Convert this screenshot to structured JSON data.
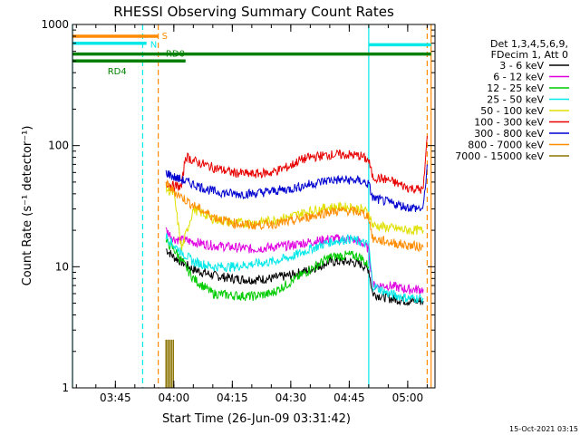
{
  "chart_data": {
    "type": "line",
    "title": "RHESSI Observing Summary Count Rates",
    "xlabel": "Start Time (26-Jun-09 03:31:42)",
    "ylabel": "Count Rate (s⁻¹ detector⁻¹)",
    "y_scale": "log",
    "ylim": [
      1,
      1000
    ],
    "xlim": [
      "03:34",
      "05:07"
    ],
    "x_ticks": [
      "03:45",
      "04:00",
      "04:15",
      "04:30",
      "04:45",
      "05:00"
    ],
    "y_ticks": [
      "1",
      "10",
      "100",
      "1000"
    ],
    "legend": {
      "placement": "top-right",
      "header": [
        "Det 1,3,4,5,6,9,",
        "FDecim 1, Att 0"
      ]
    },
    "series": [
      {
        "name": "3 - 6 keV",
        "color": "#000000",
        "x": [
          "03:58",
          "04:00",
          "04:05",
          "04:10",
          "04:15",
          "04:20",
          "04:25",
          "04:30",
          "04:35",
          "04:40",
          "04:45",
          "04:48",
          "04:50",
          "04:51",
          "04:55",
          "05:00",
          "05:04"
        ],
        "y": [
          14,
          12,
          9.5,
          8.5,
          8,
          7.8,
          8,
          8.5,
          9.5,
          11,
          11,
          10.5,
          9.5,
          6,
          5.5,
          5.2,
          5.2
        ]
      },
      {
        "name": "6 - 12 keV",
        "color": "#e000e0",
        "x": [
          "03:58",
          "04:00",
          "04:05",
          "04:10",
          "04:15",
          "04:20",
          "04:25",
          "04:30",
          "04:35",
          "04:40",
          "04:45",
          "04:48",
          "04:50",
          "04:51",
          "04:55",
          "05:00",
          "05:04"
        ],
        "y": [
          20,
          17,
          16,
          15,
          14.5,
          14,
          14.5,
          15,
          16,
          17,
          17,
          16,
          14,
          7,
          7,
          6.5,
          6.5
        ]
      },
      {
        "name": "12 - 25 keV",
        "color": "#00cc00",
        "x": [
          "03:58",
          "04:00",
          "04:05",
          "04:10",
          "04:15",
          "04:20",
          "04:25",
          "04:30",
          "04:35",
          "04:40",
          "04:45",
          "04:48",
          "04:50"
        ],
        "y": [
          16,
          14,
          8,
          6,
          5.8,
          5.7,
          6,
          7.5,
          9.5,
          12,
          12.5,
          12,
          10
        ]
      },
      {
        "name": "25 - 50 keV",
        "color": "#00e8e8",
        "x": [
          "03:58",
          "04:00",
          "04:05",
          "04:10",
          "04:15",
          "04:20",
          "04:25",
          "04:30",
          "04:35",
          "04:40",
          "04:45",
          "04:48",
          "04:50",
          "04:51",
          "04:55",
          "05:00",
          "05:04"
        ],
        "y": [
          18,
          15,
          11,
          10,
          10,
          10.5,
          11,
          12,
          14,
          16,
          17,
          16,
          15,
          7,
          6,
          5.5,
          5.5
        ]
      },
      {
        "name": "50 - 100 keV",
        "color": "#e0e000",
        "x": [
          "03:58",
          "04:00",
          "04:02",
          "04:05",
          "04:10",
          "04:15",
          "04:20",
          "04:25",
          "04:30",
          "04:35",
          "04:40",
          "04:45",
          "04:48",
          "04:50",
          "04:51",
          "04:55",
          "05:00",
          "05:04"
        ],
        "y": [
          44,
          40,
          14,
          30,
          25,
          23,
          23,
          24,
          26,
          29,
          31,
          31,
          30,
          28,
          22,
          21,
          20,
          20
        ]
      },
      {
        "name": "100 - 300 keV",
        "color": "#e80000",
        "x": [
          "03:58",
          "04:00",
          "04:02",
          "04:03",
          "04:05",
          "04:10",
          "04:15",
          "04:20",
          "04:25",
          "04:30",
          "04:32",
          "04:35",
          "04:40",
          "04:45",
          "04:48",
          "04:50",
          "04:51",
          "04:55",
          "05:00",
          "05:04",
          "05:05"
        ],
        "y": [
          50,
          46,
          46,
          82,
          75,
          66,
          60,
          58,
          60,
          68,
          75,
          80,
          84,
          84,
          82,
          75,
          55,
          52,
          45,
          43,
          120
        ]
      },
      {
        "name": "300 - 800 keV",
        "color": "#0000d0",
        "x": [
          "03:58",
          "04:00",
          "04:05",
          "04:10",
          "04:15",
          "04:20",
          "04:25",
          "04:30",
          "04:35",
          "04:40",
          "04:45",
          "04:48",
          "04:50",
          "04:51",
          "04:55",
          "05:00",
          "05:04",
          "05:05"
        ],
        "y": [
          60,
          55,
          48,
          42,
          40,
          40,
          42,
          44,
          48,
          52,
          52,
          51,
          48,
          37,
          34,
          31,
          30,
          70
        ]
      },
      {
        "name": "800 - 7000 keV",
        "color": "#ff8c00",
        "x": [
          "03:58",
          "04:00",
          "04:05",
          "04:10",
          "04:15",
          "04:20",
          "04:25",
          "04:30",
          "04:35",
          "04:40",
          "04:45",
          "04:48",
          "04:50",
          "04:51",
          "04:55",
          "05:00",
          "05:04"
        ],
        "y": [
          48,
          42,
          32,
          26,
          23,
          22,
          22.5,
          23.5,
          26,
          28.5,
          29,
          28,
          26,
          17,
          16,
          15,
          14.5
        ]
      },
      {
        "name": "7000 - 15000 keV",
        "color": "#8b7300",
        "x": [
          "03:58",
          "03:59",
          "04:00"
        ],
        "y": [
          2.5,
          2.5,
          2.5
        ]
      }
    ],
    "annotations": [
      {
        "label": "S",
        "color": "#ff8c00",
        "x_start": "03:34",
        "x_end": "03:56",
        "level": 800
      },
      {
        "label": "N",
        "color": "#00e8e8",
        "x_start": "03:34",
        "x_end": "03:53",
        "level": 700
      },
      {
        "label": "RD0",
        "color": "#008000",
        "x_start": "03:34",
        "x_end": "05:06",
        "level": 570
      },
      {
        "label": "RD4",
        "color": "#008000",
        "x_start": "03:34",
        "x_end": "04:03",
        "level": 500
      },
      {
        "label": "",
        "color": "#00e8e8",
        "x_start": "04:50",
        "x_end": "05:06",
        "level": 680
      }
    ],
    "vertical_markers": [
      {
        "x": "03:34",
        "color": "#00e8e8",
        "style": "solid"
      },
      {
        "x": "03:52",
        "color": "#00e8e8",
        "style": "dashed"
      },
      {
        "x": "03:56",
        "color": "#ff8c00",
        "style": "dashed"
      },
      {
        "x": "04:50",
        "color": "#00e8e8",
        "style": "solid"
      },
      {
        "x": "05:05",
        "color": "#ff8c00",
        "style": "dashed"
      },
      {
        "x": "05:06",
        "color": "#ff8c00",
        "style": "solid"
      }
    ]
  },
  "footer_stamp": "15-Oct-2021 03:15"
}
